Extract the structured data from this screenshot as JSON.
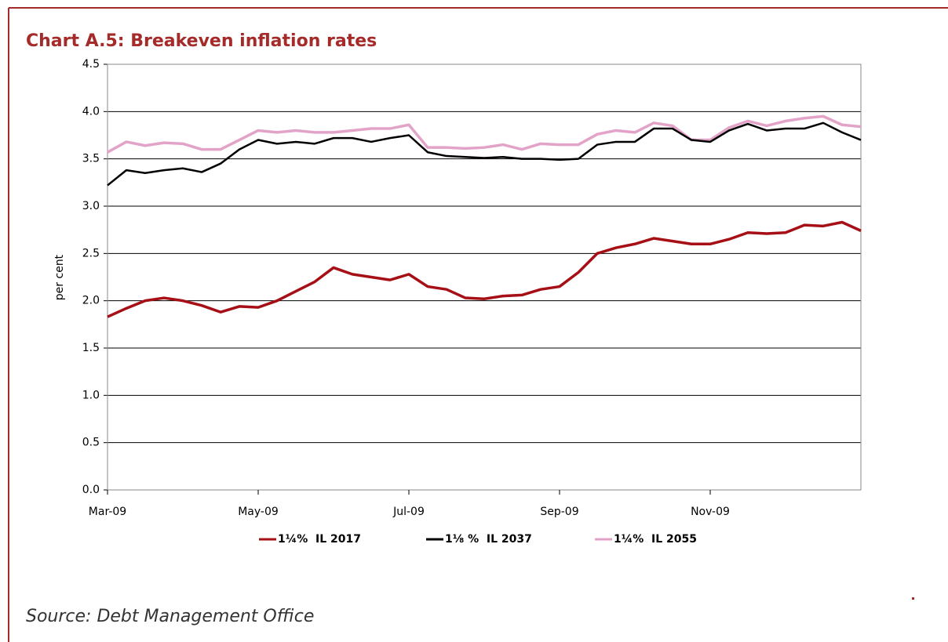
{
  "chart_data": {
    "type": "line",
    "title": "Chart A.5: Breakeven inflation rates",
    "y_label": "per cent",
    "source": "Source: Debt Management Office",
    "x": [
      0,
      0.25,
      0.5,
      0.75,
      1,
      1.25,
      1.5,
      1.75,
      2,
      2.25,
      2.5,
      2.75,
      3,
      3.25,
      3.5,
      3.75,
      4,
      4.25,
      4.5,
      4.75,
      5,
      5.25,
      5.5,
      5.75,
      6,
      6.25,
      6.5,
      6.75,
      7,
      7.25,
      7.5,
      7.75,
      8,
      8.25,
      8.5,
      8.75,
      9,
      9.25,
      9.5,
      9.75,
      10
    ],
    "xlim": [
      0,
      10
    ],
    "xticks": [
      {
        "value": 0,
        "label": "Mar-09"
      },
      {
        "value": 2,
        "label": "May-09"
      },
      {
        "value": 4,
        "label": "Jul-09"
      },
      {
        "value": 6,
        "label": "Sep-09"
      },
      {
        "value": 8,
        "label": "Nov-09"
      }
    ],
    "ylim": [
      0,
      4.5
    ],
    "yticks": [
      {
        "value": 0,
        "label": "0.0"
      },
      0.5,
      {
        "value": 1,
        "label": "1.0"
      },
      1.5,
      {
        "value": 2,
        "label": "2.0"
      },
      2.5,
      {
        "value": 3,
        "label": "3.0"
      },
      3.5,
      {
        "value": 4,
        "label": "4.0"
      },
      4.5
    ],
    "grid": true,
    "legend": "bottom",
    "series": [
      {
        "name": "1¼%  IL 2017",
        "color": "#a50f15",
        "width": 3.5,
        "values": [
          1.83,
          1.92,
          2.0,
          2.03,
          2.0,
          1.95,
          1.88,
          1.94,
          1.93,
          2.0,
          2.1,
          2.2,
          2.35,
          2.28,
          2.25,
          2.22,
          2.28,
          2.15,
          2.12,
          2.03,
          2.02,
          2.05,
          2.06,
          2.12,
          2.15,
          2.3,
          2.5,
          2.56,
          2.6,
          2.66,
          2.63,
          2.6,
          2.6,
          2.65,
          2.72,
          2.71,
          2.72,
          2.8,
          2.79,
          2.83,
          2.74
        ]
      },
      {
        "name": "1⅛ %  IL 2037",
        "color": "#000000",
        "width": 2.5,
        "values": [
          3.22,
          3.38,
          3.35,
          3.38,
          3.4,
          3.36,
          3.45,
          3.6,
          3.7,
          3.66,
          3.68,
          3.66,
          3.72,
          3.72,
          3.68,
          3.72,
          3.75,
          3.57,
          3.53,
          3.52,
          3.51,
          3.52,
          3.5,
          3.5,
          3.49,
          3.5,
          3.65,
          3.68,
          3.68,
          3.82,
          3.82,
          3.7,
          3.68,
          3.8,
          3.87,
          3.8,
          3.82,
          3.82,
          3.88,
          3.78,
          3.7
        ]
      },
      {
        "name": "1¼%  IL 2055",
        "color": "#e3a3c8",
        "width": 3.5,
        "values": [
          3.57,
          3.68,
          3.64,
          3.67,
          3.66,
          3.6,
          3.6,
          3.7,
          3.8,
          3.78,
          3.8,
          3.78,
          3.78,
          3.8,
          3.82,
          3.82,
          3.86,
          3.62,
          3.62,
          3.61,
          3.62,
          3.65,
          3.6,
          3.66,
          3.65,
          3.65,
          3.76,
          3.8,
          3.78,
          3.88,
          3.85,
          3.7,
          3.7,
          3.83,
          3.9,
          3.85,
          3.9,
          3.93,
          3.95,
          3.86,
          3.84
        ]
      }
    ]
  }
}
